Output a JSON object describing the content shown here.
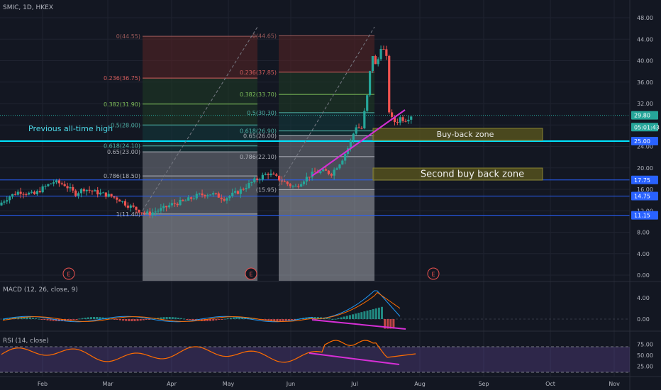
{
  "header": {
    "symbol_label": "SMIC, 1D, HKEX"
  },
  "colors": {
    "background": "#131722",
    "grid": "#1f2330",
    "up": "#26a69a",
    "down": "#ef5350",
    "annotation_line": "#d62fd6",
    "level_line": "#2962ff",
    "ath_line": "#00e5ff",
    "zone_fill": "#5d5a1e",
    "fib_red": "#5a2424",
    "fib_green": "#1f3d24",
    "fib_teal": "#123a3c",
    "fib_gray": "#777a84"
  },
  "price_axis": {
    "ticks": [
      "48.00",
      "44.00",
      "40.00",
      "36.00",
      "32.00",
      "28.00",
      "24.00",
      "20.00",
      "16.00",
      "12.00",
      "8.00",
      "4.00",
      "0.00"
    ]
  },
  "time_axis": {
    "labels": [
      "Feb",
      "Mar",
      "Apr",
      "May",
      "Jun",
      "Jul",
      "Aug",
      "Sep",
      "Oct",
      "Nov"
    ]
  },
  "price_badges": [
    {
      "text": "29.80",
      "color": "#26a69a",
      "value": 29.8
    },
    {
      "text": "05:01:43",
      "color": "#26a69a",
      "value": 27.6
    },
    {
      "text": "25.00",
      "color": "#2962ff",
      "value": 25.0
    },
    {
      "text": "17.75",
      "color": "#2962ff",
      "value": 17.75
    },
    {
      "text": "14.75",
      "color": "#2962ff",
      "value": 14.75
    },
    {
      "text": "11.15",
      "color": "#2962ff",
      "value": 11.15
    }
  ],
  "horizontal_levels": [
    {
      "value": 25.0,
      "style": "ath"
    },
    {
      "value": 17.75,
      "style": "level"
    },
    {
      "value": 14.75,
      "style": "level"
    },
    {
      "value": 11.15,
      "style": "level"
    },
    {
      "value": 29.8,
      "style": "current"
    }
  ],
  "annotations": {
    "previous_ath": "Previous all-time high",
    "buy_back_zone": "Buy-back zone",
    "second_buy_back_zone": "Second buy back zone",
    "earnings_marker": "E"
  },
  "fib_retracements": [
    {
      "levels": [
        {
          "label": "0(44.55)",
          "value": 44.55
        },
        {
          "label": "0.236(36.75)",
          "value": 36.75
        },
        {
          "label": "0.382(31.90)",
          "value": 31.9
        },
        {
          "label": "0.5(28.00)",
          "value": 28.0
        },
        {
          "label": "0.618(24.10)",
          "value": 24.1
        },
        {
          "label": "0.65(23.00)",
          "value": 23.0
        },
        {
          "label": "0.786(18.50)",
          "value": 18.5
        },
        {
          "label": "1(11.40)",
          "value": 11.4
        }
      ]
    },
    {
      "levels": [
        {
          "label": "0(44.65)",
          "value": 44.65
        },
        {
          "label": "0.236(37.85)",
          "value": 37.85
        },
        {
          "label": "0.382(33.70)",
          "value": 33.7
        },
        {
          "label": "0.5(30.30)",
          "value": 30.3
        },
        {
          "label": "0.618(26.90)",
          "value": 26.9
        },
        {
          "label": "0.65(26.00)",
          "value": 26.0
        },
        {
          "label": "0.786(22.10)",
          "value": 22.1
        },
        {
          "label": "(15.95)",
          "value": 15.95
        }
      ]
    }
  ],
  "macd": {
    "label": "MACD (12, 26, close, 9)",
    "ticks": [
      "4.00",
      "0.00"
    ]
  },
  "rsi": {
    "label": "RSI (14, close)",
    "ticks": [
      "75.00",
      "50.00",
      "25.00"
    ],
    "upper": 70,
    "lower": 30
  },
  "chart_data": {
    "type": "candlestick",
    "title": "SMIC, 1D, HKEX",
    "ylim": [
      -1,
      49
    ],
    "x_range": [
      "Jan",
      "Nov"
    ],
    "grid": true,
    "series": [
      {
        "name": "SMIC",
        "points": [
          {
            "date": "Jan-10",
            "close": 13.0
          },
          {
            "date": "Jan-15",
            "close": 14.6
          },
          {
            "date": "Jan-20",
            "close": 15.6
          },
          {
            "date": "Jan-27",
            "close": 15.0
          },
          {
            "date": "Feb-01",
            "close": 16.2
          },
          {
            "date": "Feb-06",
            "close": 17.4
          },
          {
            "date": "Feb-11",
            "close": 16.9
          },
          {
            "date": "Feb-16",
            "close": 15.2
          },
          {
            "date": "Feb-20",
            "close": 16.1
          },
          {
            "date": "Feb-25",
            "close": 15.5
          },
          {
            "date": "Mar-01",
            "close": 14.9
          },
          {
            "date": "Mar-06",
            "close": 14.2
          },
          {
            "date": "Mar-10",
            "close": 13.1
          },
          {
            "date": "Mar-16",
            "close": 12.0
          },
          {
            "date": "Mar-20",
            "close": 11.4
          },
          {
            "date": "Mar-27",
            "close": 12.4
          },
          {
            "date": "Apr-01",
            "close": 13.2
          },
          {
            "date": "Apr-08",
            "close": 13.8
          },
          {
            "date": "Apr-15",
            "close": 14.9
          },
          {
            "date": "Apr-22",
            "close": 15.2
          },
          {
            "date": "Apr-29",
            "close": 14.3
          },
          {
            "date": "May-06",
            "close": 15.6
          },
          {
            "date": "May-13",
            "close": 17.5
          },
          {
            "date": "May-20",
            "close": 19.0
          },
          {
            "date": "May-24",
            "close": 18.2
          },
          {
            "date": "May-30",
            "close": 16.9
          },
          {
            "date": "Jun-03",
            "close": 16.4
          },
          {
            "date": "Jun-07",
            "close": 17.8
          },
          {
            "date": "Jun-12",
            "close": 19.1
          },
          {
            "date": "Jun-17",
            "close": 19.4
          },
          {
            "date": "Jun-20",
            "close": 18.9
          },
          {
            "date": "Jun-25",
            "close": 21.5
          },
          {
            "date": "Jun-28",
            "close": 23.8
          },
          {
            "date": "Jul-02",
            "close": 28.1
          },
          {
            "date": "Jul-04",
            "close": 26.8
          },
          {
            "date": "Jul-07",
            "close": 33.9
          },
          {
            "date": "Jul-09",
            "close": 41.5
          },
          {
            "date": "Jul-11",
            "close": 38.5
          },
          {
            "date": "Jul-13",
            "close": 42.8
          },
          {
            "date": "Jul-14",
            "close": 40.8
          },
          {
            "date": "Jul-15",
            "close": 44.0
          },
          {
            "date": "Jul-16",
            "close": 38.3
          },
          {
            "date": "Jul-17",
            "close": 29.6
          },
          {
            "date": "Jul-20",
            "close": 28.4
          },
          {
            "date": "Jul-22",
            "close": 29.4
          },
          {
            "date": "Jul-24",
            "close": 28.9
          },
          {
            "date": "Jul-27",
            "close": 29.8
          }
        ]
      }
    ]
  }
}
